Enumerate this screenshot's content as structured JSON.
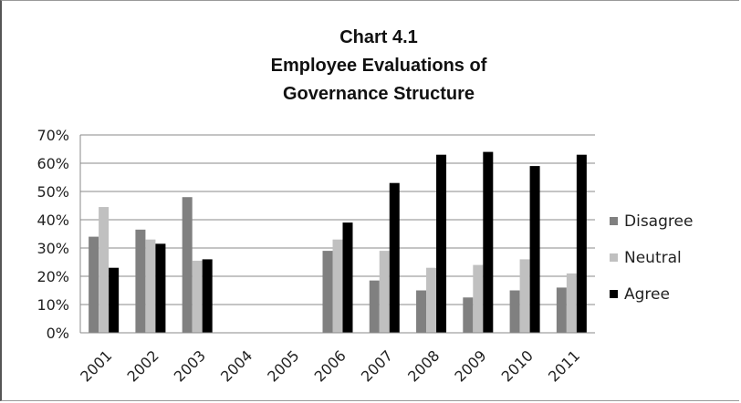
{
  "chart_data": {
    "type": "bar",
    "title_lines": [
      "Chart 4.1",
      "Employee Evaluations of",
      "Governance Structure"
    ],
    "xlabel": "",
    "ylabel": "",
    "categories": [
      "2001",
      "2002",
      "2003",
      "2004",
      "2005",
      "2006",
      "2007",
      "2008",
      "2009",
      "2010",
      "2011"
    ],
    "series": [
      {
        "name": "Disagree",
        "color": "#808080",
        "values": [
          34,
          36.5,
          48,
          null,
          null,
          29,
          18.5,
          15,
          12.5,
          15,
          16
        ]
      },
      {
        "name": "Neutral",
        "color": "#c0c0c0",
        "values": [
          44.5,
          33,
          25.5,
          null,
          null,
          33,
          29,
          23,
          24,
          26,
          21
        ]
      },
      {
        "name": "Agree",
        "color": "#000000",
        "values": [
          23,
          31.5,
          26,
          null,
          null,
          39,
          53,
          63,
          64,
          59,
          63
        ]
      }
    ],
    "ylim": [
      0,
      70
    ],
    "yticks": [
      "0%",
      "10%",
      "20%",
      "30%",
      "40%",
      "50%",
      "60%",
      "70%"
    ],
    "ytick_values": [
      0,
      10,
      20,
      30,
      40,
      50,
      60,
      70
    ],
    "grid": true,
    "legend_position": "right"
  }
}
